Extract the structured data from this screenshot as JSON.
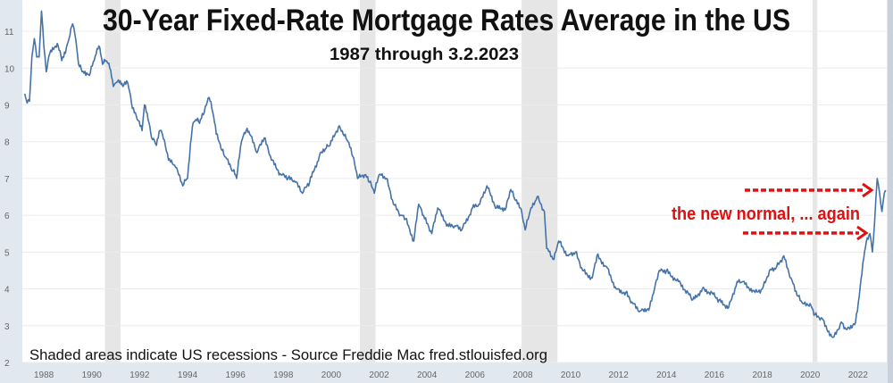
{
  "chart_data": {
    "type": "line",
    "title": "30-Year Fixed-Rate Mortgage Rates Average in the US",
    "subtitle": "1987 through 3.2.2023",
    "source_note": "Shaded areas indicate US recessions - Source Freddie Mac fred.stlouisfed.org",
    "annotation": "the new normal, ... again",
    "xlabel": "",
    "ylabel": "",
    "xlim": [
      1987.1,
      2023.2
    ],
    "ylim": [
      2,
      11.85
    ],
    "x_ticks": [
      "1988",
      "1990",
      "1992",
      "1994",
      "1996",
      "1998",
      "2000",
      "2002",
      "2004",
      "2006",
      "2008",
      "2010",
      "2012",
      "2014",
      "2016",
      "2018",
      "2020",
      "2022"
    ],
    "y_ticks": [
      "2",
      "3",
      "4",
      "5",
      "6",
      "7",
      "8",
      "9",
      "10",
      "11"
    ],
    "grid": "horizontal",
    "recessions": [
      [
        1990.55,
        1991.2
      ],
      [
        2001.2,
        2001.85
      ],
      [
        2007.95,
        2009.45
      ],
      [
        2020.1,
        2020.3
      ]
    ],
    "colors": {
      "line": "#4572a7",
      "recession": "#e6e6e6",
      "annotation": "#e01010",
      "axis_bg": "#e1e8f0"
    },
    "series": [
      {
        "x": [
          1987.2,
          1987.3,
          1987.4,
          1987.5,
          1987.6,
          1987.7,
          1987.8,
          1987.9,
          1988.0,
          1988.1,
          1988.25,
          1988.4,
          1988.6,
          1988.75,
          1988.9,
          1989.05,
          1989.2,
          1989.3,
          1989.45,
          1989.6,
          1989.75,
          1989.9,
          1990.1,
          1990.3,
          1990.45,
          1990.6,
          1990.75,
          1990.9,
          1991.0,
          1991.15,
          1991.3,
          1991.5,
          1991.7,
          1991.9,
          1992.1,
          1992.2,
          1992.35,
          1992.5,
          1992.7,
          1992.85,
          1992.95,
          1993.2,
          1993.5,
          1993.8,
          1994.0,
          1994.2,
          1994.35,
          1994.5,
          1994.7,
          1994.9,
          1995.05,
          1995.2,
          1995.4,
          1995.55,
          1995.9,
          1996.05,
          1996.25,
          1996.45,
          1996.6,
          1996.9,
          1997.2,
          1997.5,
          1997.9,
          1998.2,
          1998.5,
          1998.8,
          1999.1,
          1999.5,
          1999.75,
          1999.95,
          2000.3,
          2000.5,
          2000.7,
          2000.9,
          2001.1,
          2001.4,
          2001.6,
          2001.8,
          2002.0,
          2002.3,
          2002.6,
          2002.9,
          2003.1,
          2003.45,
          2003.65,
          2003.9,
          2004.2,
          2004.45,
          2004.9,
          2005.2,
          2005.45,
          2005.9,
          2006.2,
          2006.5,
          2006.9,
          2007.3,
          2007.5,
          2007.7,
          2007.9,
          2008.1,
          2008.3,
          2008.6,
          2008.9,
          2009.0,
          2009.3,
          2009.5,
          2009.9,
          2010.2,
          2010.5,
          2010.9,
          2011.1,
          2011.5,
          2011.9,
          2012.3,
          2012.6,
          2012.9,
          2013.3,
          2013.5,
          2013.7,
          2014.0,
          2014.5,
          2014.9,
          2015.1,
          2015.5,
          2015.9,
          2016.2,
          2016.6,
          2016.95,
          2017.2,
          2017.7,
          2018.0,
          2018.3,
          2018.6,
          2018.9,
          2019.2,
          2019.5,
          2019.7,
          2020.0,
          2020.2,
          2020.5,
          2020.9,
          2021.0,
          2021.3,
          2021.5,
          2021.9,
          2022.05,
          2022.2,
          2022.35,
          2022.5,
          2022.6,
          2022.7,
          2022.8,
          2022.9,
          2023.0,
          2023.1,
          2023.17
        ],
        "y": [
          9.3,
          9.05,
          9.1,
          10.3,
          10.8,
          10.3,
          10.3,
          11.55,
          10.6,
          9.9,
          10.4,
          10.5,
          10.6,
          10.2,
          10.4,
          10.8,
          11.2,
          10.9,
          10.1,
          9.9,
          9.8,
          9.8,
          10.2,
          10.6,
          10.1,
          10.2,
          10.0,
          9.5,
          9.6,
          9.6,
          9.5,
          9.6,
          8.9,
          8.6,
          8.3,
          9.0,
          8.6,
          8.1,
          7.9,
          8.3,
          8.2,
          7.5,
          7.3,
          6.8,
          7.0,
          8.4,
          8.6,
          8.5,
          8.8,
          9.2,
          8.8,
          8.2,
          7.8,
          7.6,
          7.2,
          7.0,
          8.0,
          8.3,
          8.2,
          7.7,
          8.1,
          7.5,
          7.1,
          7.0,
          6.9,
          6.6,
          6.9,
          7.6,
          7.8,
          7.9,
          8.4,
          8.2,
          8.0,
          7.6,
          7.0,
          7.1,
          6.9,
          6.6,
          7.1,
          7.0,
          6.3,
          6.0,
          5.9,
          5.3,
          6.3,
          5.9,
          5.5,
          6.2,
          5.7,
          5.7,
          5.6,
          6.2,
          6.3,
          6.8,
          6.2,
          6.2,
          6.7,
          6.4,
          6.2,
          5.6,
          6.1,
          6.5,
          6.1,
          5.1,
          4.8,
          5.3,
          4.9,
          5.0,
          4.5,
          4.3,
          4.9,
          4.6,
          4.0,
          3.9,
          3.6,
          3.4,
          3.5,
          4.0,
          4.5,
          4.5,
          4.2,
          3.9,
          3.7,
          4.0,
          3.9,
          3.7,
          3.5,
          4.2,
          4.2,
          3.9,
          4.0,
          4.5,
          4.6,
          4.9,
          4.3,
          3.8,
          3.6,
          3.6,
          3.3,
          3.2,
          2.7,
          2.7,
          3.1,
          2.9,
          3.1,
          3.8,
          4.7,
          5.3,
          5.5,
          5.0,
          5.9,
          7.0,
          6.6,
          6.1,
          6.6,
          6.65
        ]
      }
    ]
  }
}
